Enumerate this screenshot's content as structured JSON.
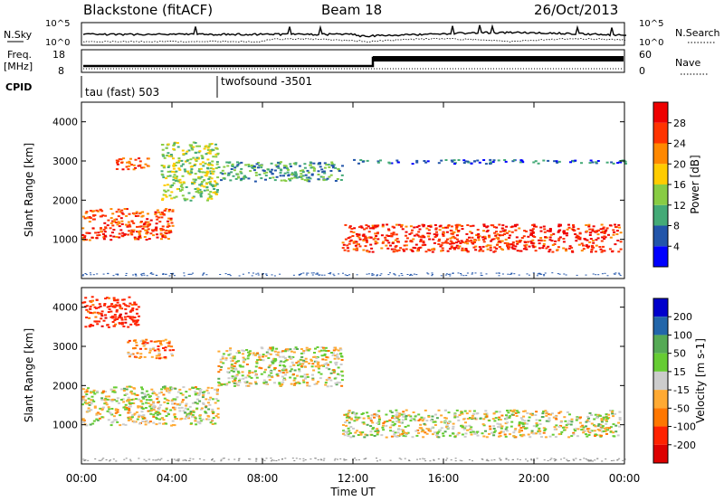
{
  "header": {
    "station": "Blackstone (fitACF)",
    "beam": "Beam 18",
    "date": "26/Oct/2013"
  },
  "noise_panel": {
    "left_label": "N.Sky",
    "right_label": "N.Search",
    "ticks": [
      "10^5",
      "10^0"
    ]
  },
  "freq_panel": {
    "left_label_line1": "Freq.",
    "left_label_line2": "[MHz]",
    "right_label": "Nave",
    "left_ticks": [
      "18",
      "8"
    ],
    "right_ticks": [
      "60",
      "0"
    ]
  },
  "cpid": {
    "label": "CPID",
    "segments": [
      {
        "name": "tau (fast) 503",
        "start_hour": 0
      },
      {
        "name": "twofsound -3501",
        "start_hour": 6
      }
    ]
  },
  "x_axis": {
    "label": "Time UT",
    "ticks": [
      "00:00",
      "04:00",
      "08:00",
      "12:00",
      "16:00",
      "20:00",
      "00:00"
    ]
  },
  "power_colorbar": {
    "label": "Power [dB]",
    "ticks": [
      "28",
      "24",
      "20",
      "16",
      "12",
      "8",
      "4"
    ],
    "colors": [
      "#0000ff",
      "#2255aa",
      "#44aa77",
      "#88cc44",
      "#ffcc00",
      "#ff8800",
      "#ff3300",
      "#ee0000"
    ]
  },
  "velocity_colorbar": {
    "label": "Velocity [m s-1]",
    "ticks": [
      "200",
      "100",
      "50",
      "15",
      "-15",
      "-50",
      "-100",
      "-200"
    ],
    "colors": [
      "#0000cc",
      "#2266aa",
      "#55aa55",
      "#66cc33",
      "#cccccc",
      "#ffaa33",
      "#ff7700",
      "#ff2200",
      "#dd0000"
    ]
  },
  "chart_data": [
    {
      "type": "heatmap",
      "title": "",
      "xlabel": "Time UT",
      "ylabel": "Slant Range [km]",
      "xlim": [
        0,
        24
      ],
      "ylim": [
        0,
        4500
      ],
      "yticks": [
        1000,
        2000,
        3000,
        4000
      ],
      "zlabel": "Power [dB]",
      "bands": [
        {
          "t0": 0,
          "t1": 4,
          "r0": 1000,
          "r1": 1800,
          "value_db": 26
        },
        {
          "t0": 1.5,
          "t1": 3,
          "r0": 2800,
          "r1": 3100,
          "value_db": 25
        },
        {
          "t0": 3.5,
          "t1": 6,
          "r0": 2000,
          "r1": 3500,
          "value_db": 14
        },
        {
          "t0": 6,
          "t1": 11.5,
          "r0": 2500,
          "r1": 3000,
          "value_db": 10
        },
        {
          "t0": 11.5,
          "t1": 23.8,
          "r0": 700,
          "r1": 1400,
          "value_db": 27
        },
        {
          "t0": 12,
          "t1": 24,
          "r0": 2950,
          "r1": 3050,
          "value_db": 6
        }
      ]
    },
    {
      "type": "heatmap",
      "title": "",
      "xlabel": "Time UT",
      "ylabel": "Slant Range [km]",
      "xlim": [
        0,
        24
      ],
      "ylim": [
        0,
        4500
      ],
      "yticks": [
        1000,
        2000,
        3000,
        4000
      ],
      "zlabel": "Velocity [m s-1]",
      "bands": [
        {
          "t0": 0,
          "t1": 2.5,
          "r0": 3500,
          "r1": 4300,
          "value_ms": -150
        },
        {
          "t0": 2,
          "t1": 4,
          "r0": 2700,
          "r1": 3200,
          "value_ms": -60
        },
        {
          "t0": 0,
          "t1": 6,
          "r0": 1000,
          "r1": 2000,
          "value_ms": 0
        },
        {
          "t0": 6,
          "t1": 11.5,
          "r0": 2000,
          "r1": 3000,
          "value_ms": 0
        },
        {
          "t0": 11.5,
          "t1": 23.8,
          "r0": 700,
          "r1": 1400,
          "value_ms": 0
        }
      ]
    }
  ]
}
